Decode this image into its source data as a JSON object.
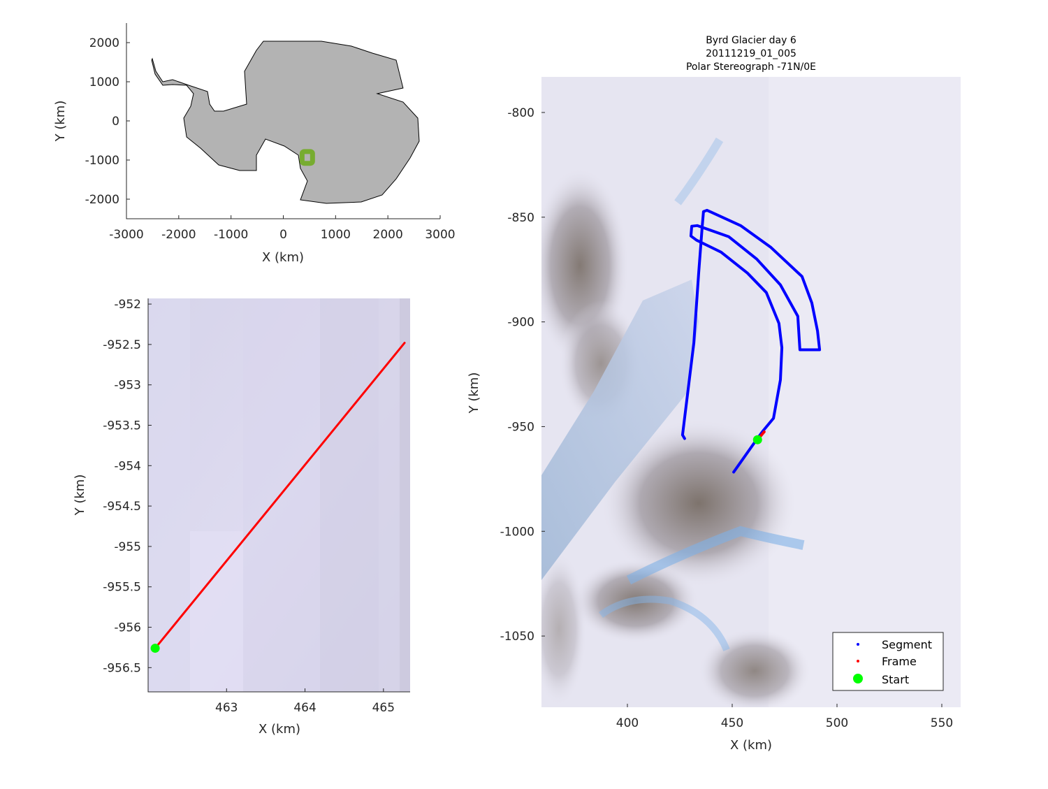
{
  "chart_data": [
    {
      "type": "line",
      "xlabel": "X (km)",
      "ylabel": "Y (km)",
      "xlim": [
        -3000,
        3000
      ],
      "ylim": [
        -2500,
        2500
      ],
      "xticks": [
        -3000,
        -2000,
        -1000,
        0,
        1000,
        2000,
        3000
      ],
      "yticks": [
        -2000,
        -1000,
        0,
        1000,
        2000
      ],
      "xtick_labels": [
        "-3000",
        "-2000",
        "-1000",
        "0",
        "1000",
        "2000",
        "3000"
      ],
      "ytick_labels": [
        "-2000",
        "-1000",
        "0",
        "1000",
        "2000"
      ],
      "land_color": "#b3b3b3",
      "highlight_color": "#77ac30",
      "coastline": [
        [
          -2505,
          1589
        ],
        [
          -2438,
          1268
        ],
        [
          -2305,
          1000
        ],
        [
          -2118,
          1054
        ],
        [
          -1810,
          911
        ],
        [
          -1450,
          750
        ],
        [
          -1409,
          429
        ],
        [
          -1316,
          250
        ],
        [
          -1142,
          250
        ],
        [
          -701,
          429
        ],
        [
          -741,
          1268
        ],
        [
          -514,
          1804
        ],
        [
          -381,
          2036
        ],
        [
          728,
          2036
        ],
        [
          1303,
          1911
        ],
        [
          1703,
          1732
        ],
        [
          2158,
          1554
        ],
        [
          2291,
          839
        ],
        [
          1797,
          697
        ],
        [
          2291,
          482
        ],
        [
          2572,
          71
        ],
        [
          2599,
          -518
        ],
        [
          2425,
          -947
        ],
        [
          2158,
          -1482
        ],
        [
          1890,
          -1893
        ],
        [
          1490,
          -2072
        ],
        [
          822,
          -2107
        ],
        [
          327,
          -2018
        ],
        [
          461,
          -1536
        ],
        [
          327,
          -1214
        ],
        [
          287,
          -875
        ],
        [
          20,
          -643
        ],
        [
          -341,
          -464
        ],
        [
          -514,
          -875
        ],
        [
          -514,
          -1268
        ],
        [
          -835,
          -1268
        ],
        [
          -1236,
          -1125
        ],
        [
          -1583,
          -697
        ],
        [
          -1850,
          -411
        ],
        [
          -1904,
          71
        ],
        [
          -1770,
          375
        ],
        [
          -1717,
          697
        ],
        [
          -1850,
          911
        ],
        [
          -2118,
          929
        ],
        [
          -2305,
          911
        ],
        [
          -2452,
          1197
        ],
        [
          -2518,
          1554
        ]
      ],
      "highlight_box": {
        "x": [
          359,
          559
        ],
        "y": [
          -1084,
          -783
        ]
      }
    },
    {
      "type": "line",
      "xlabel": "X (km)",
      "ylabel": "Y (km)",
      "xlim": [
        462.0,
        465.34
      ],
      "ylim": [
        -956.8,
        -951.93
      ],
      "xticks": [
        463,
        464,
        465
      ],
      "yticks": [
        -952,
        -952.5,
        -953,
        -953.5,
        -954,
        -954.5,
        -955,
        -955.5,
        -956,
        -956.5
      ],
      "xtick_labels": [
        "463",
        "464",
        "465"
      ],
      "ytick_labels": [
        "-952",
        "-952.5",
        "-953",
        "-953.5",
        "-954",
        "-954.5",
        "-955",
        "-955.5",
        "-956",
        "-956.5"
      ],
      "series": [
        {
          "role": "frame",
          "color": "#ff0000",
          "x": [
            462.09,
            465.27
          ],
          "y": [
            -956.26,
            -952.48
          ]
        }
      ],
      "start": {
        "color": "#00ff00",
        "x": 462.09,
        "y": -956.26
      }
    },
    {
      "type": "line",
      "title": [
        "Byrd Glacier day 6",
        "20111219_01_005",
        "Polar Stereograph -71N/0E"
      ],
      "xlabel": "X (km)",
      "ylabel": "Y (km)",
      "xlim": [
        359,
        559
      ],
      "ylim": [
        -1084,
        -783
      ],
      "xticks": [
        400,
        450,
        500,
        550
      ],
      "yticks": [
        -800,
        -850,
        -900,
        -950,
        -1000,
        -1050
      ],
      "xtick_labels": [
        "400",
        "450",
        "500",
        "550"
      ],
      "ytick_labels": [
        "-800",
        "-850",
        "-900",
        "-950",
        "-1000",
        "-1050"
      ],
      "series": [
        {
          "name": "Segment",
          "color": "#0000ff",
          "x": [
            450.7,
            462.0,
            465.0,
            469.7,
            473.0,
            473.7,
            472.3,
            466.3,
            457.3,
            444.7,
            433.0,
            430.3,
            430.7,
            433.3,
            448.3,
            461.7,
            473.0,
            481.3,
            482.3,
            491.7,
            490.7,
            488.0,
            483.3,
            468.3,
            454.0,
            438.0,
            436.3,
            435.7,
            434.0,
            431.7,
            428.3,
            426.3,
            427.3
          ],
          "y": [
            -971.7,
            -955.7,
            -951.7,
            -946.0,
            -927.7,
            -912.3,
            -900.7,
            -886.0,
            -876.7,
            -866.7,
            -861.0,
            -859.0,
            -854.3,
            -854.0,
            -859.3,
            -870.0,
            -882.3,
            -897.3,
            -913.3,
            -913.3,
            -904.3,
            -891.0,
            -878.3,
            -864.3,
            -854.0,
            -846.7,
            -847.3,
            -854.3,
            -876.7,
            -910.0,
            -937.7,
            -954.0,
            -955.7
          ]
        },
        {
          "name": "Frame",
          "color": "#ff0000",
          "x": [
            462.09,
            465.27
          ],
          "y": [
            -956.26,
            -952.48
          ]
        }
      ],
      "start": {
        "name": "Start",
        "color": "#00ff00",
        "x": 462.09,
        "y": -956.26
      },
      "legend": {
        "placement": "bottom-right",
        "entries": [
          "Segment",
          "Frame",
          "Start"
        ]
      }
    }
  ]
}
